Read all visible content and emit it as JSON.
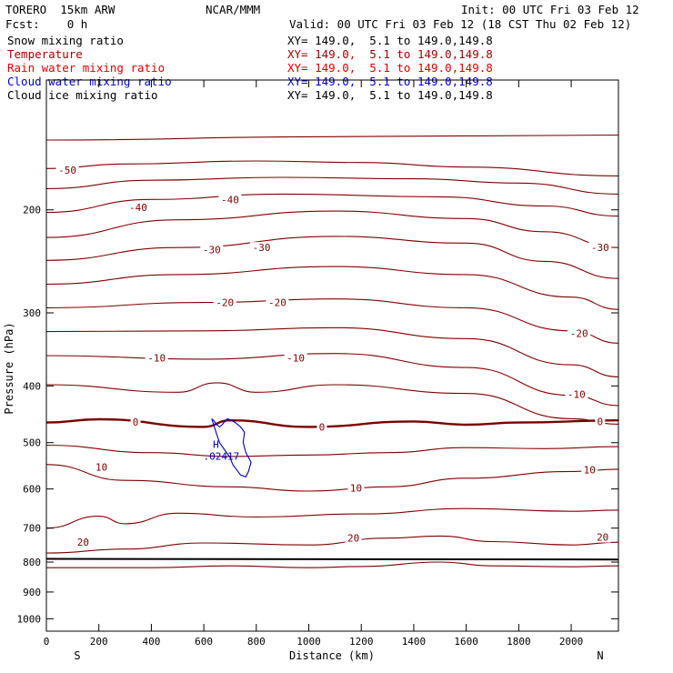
{
  "header": {
    "model": "TORERO  15km ARW",
    "center": "NCAR/MMM",
    "init": "Init: 00 UTC Fri 03 Feb 12",
    "fcst": "Fcst:    0 h",
    "valid": "Valid: 00 UTC Fri 03 Feb 12 (18 CST Thu 02 Feb 12)"
  },
  "fields": [
    {
      "name": "Snow mixing ratio",
      "xy": "XY= 149.0,  5.1 to 149.0,149.8",
      "color": "#000000"
    },
    {
      "name": "Temperature",
      "xy": "XY= 149.0,  5.1 to 149.0,149.8",
      "color": "#aa0000"
    },
    {
      "name": "Rain water mixing ratio",
      "xy": "XY= 149.0,  5.1 to 149.0,149.8",
      "color": "#dd0000"
    },
    {
      "name": "Cloud water mixing ratio",
      "xy": "XY= 149.0,  5.1 to 149.0,149.8",
      "color": "#0000cc"
    },
    {
      "name": "Cloud ice mixing ratio",
      "xy": "XY= 149.0,  5.1 to 149.0,149.8",
      "color": "#000000"
    }
  ],
  "chart_data": {
    "type": "contour",
    "xlabel": "Distance (km)",
    "ylabel": "Pressure (hPa)",
    "xlim": [
      0,
      2180
    ],
    "ylim": [
      1050,
      120
    ],
    "yscale": "log",
    "xticks": [
      0,
      200,
      400,
      600,
      800,
      1000,
      1200,
      1400,
      1600,
      1800,
      2000
    ],
    "yticks": [
      200,
      300,
      400,
      500,
      600,
      700,
      800,
      900,
      1000
    ],
    "x_end_labels": {
      "left": "S",
      "right": "N"
    },
    "temperature_contours": [
      {
        "level": -55,
        "x": [
          0,
          1090,
          2180
        ],
        "p": [
          152,
          150,
          149
        ]
      },
      {
        "level": -50,
        "x": [
          0,
          300,
          800,
          1200,
          1600,
          2180
        ],
        "p": [
          170,
          167,
          165,
          166,
          169,
          175
        ]
      },
      {
        "level": -45,
        "x": [
          0,
          400,
          900,
          1400,
          1800,
          2180
        ],
        "p": [
          184,
          178,
          176,
          177,
          180,
          188
        ]
      },
      {
        "level": -40,
        "x": [
          0,
          400,
          900,
          1500,
          1900,
          2180
        ],
        "p": [
          202,
          192,
          188,
          190,
          197,
          205
        ]
      },
      {
        "level": -35,
        "x": [
          0,
          500,
          1100,
          1600,
          1900,
          2180
        ],
        "p": [
          223,
          208,
          201,
          207,
          218,
          232
        ]
      },
      {
        "level": -30,
        "x": [
          0,
          500,
          1100,
          1600,
          1900,
          2180
        ],
        "p": [
          244,
          232,
          222,
          228,
          245,
          262
        ]
      },
      {
        "level": -25,
        "x": [
          0,
          500,
          1100,
          1600,
          2000,
          2180
        ],
        "p": [
          268,
          258,
          250,
          258,
          282,
          296
        ]
      },
      {
        "level": -20,
        "x": [
          0,
          600,
          1100,
          1600,
          2000,
          2180
        ],
        "p": [
          294,
          288,
          284,
          294,
          322,
          338
        ]
      },
      {
        "level": -15,
        "x": [
          0,
          600,
          1100,
          1600,
          2000,
          2180
        ],
        "p": [
          323,
          322,
          318,
          332,
          368,
          386
        ]
      },
      {
        "level": -10,
        "x": [
          0,
          600,
          1100,
          1600,
          2000,
          2180
        ],
        "p": [
          355,
          360,
          352,
          372,
          415,
          432
        ]
      },
      {
        "level": -5,
        "x": [
          0,
          500,
          650,
          800,
          1100,
          1600,
          2000,
          2180
        ],
        "p": [
          398,
          410,
          395,
          410,
          398,
          412,
          455,
          465
        ]
      },
      {
        "level": 0,
        "x": [
          0,
          200,
          600,
          700,
          1000,
          1400,
          1600,
          1800,
          2180
        ],
        "p": [
          462,
          456,
          470,
          458,
          470,
          460,
          466,
          462,
          458
        ]
      },
      {
        "level": 5,
        "x": [
          0,
          400,
          700,
          1000,
          1300,
          1600,
          1900,
          2180
        ],
        "p": [
          505,
          520,
          528,
          525,
          520,
          510,
          512,
          508
        ]
      },
      {
        "level": 10,
        "x": [
          0,
          300,
          700,
          1000,
          1300,
          1600,
          2000,
          2180
        ],
        "p": [
          545,
          580,
          595,
          605,
          595,
          575,
          560,
          555
        ]
      },
      {
        "level": 15,
        "x": [
          0,
          200,
          300,
          500,
          800,
          1200,
          1600,
          2000,
          2180
        ],
        "p": [
          700,
          668,
          688,
          660,
          670,
          662,
          648,
          655,
          652
        ]
      },
      {
        "level": 20,
        "x": [
          0,
          300,
          600,
          1000,
          1300,
          1500,
          1700,
          2000,
          2180
        ],
        "p": [
          772,
          760,
          742,
          748,
          728,
          722,
          738,
          748,
          740
        ]
      },
      {
        "level": 25,
        "x": [
          0,
          400,
          700,
          1000,
          1200,
          1500,
          1700,
          2000,
          2180
        ],
        "p": [
          818,
          818,
          812,
          818,
          814,
          800,
          812,
          815,
          812
        ]
      }
    ],
    "temperature_labels": [
      {
        "text": "-50",
        "x": 80,
        "p": 171
      },
      {
        "text": "-40",
        "x": 350,
        "p": 198
      },
      {
        "text": "-40",
        "x": 700,
        "p": 192
      },
      {
        "text": "-30",
        "x": 630,
        "p": 234
      },
      {
        "text": "-30",
        "x": 820,
        "p": 232
      },
      {
        "text": "-30",
        "x": 2110,
        "p": 232
      },
      {
        "text": "-20",
        "x": 680,
        "p": 288
      },
      {
        "text": "-20",
        "x": 880,
        "p": 288
      },
      {
        "text": "-20",
        "x": 2030,
        "p": 325
      },
      {
        "text": "-10",
        "x": 420,
        "p": 358
      },
      {
        "text": "-10",
        "x": 950,
        "p": 358
      },
      {
        "text": "-10",
        "x": 2020,
        "p": 413
      },
      {
        "text": "0",
        "x": 340,
        "p": 461
      },
      {
        "text": "0",
        "x": 1050,
        "p": 470
      },
      {
        "text": "0",
        "x": 2110,
        "p": 460
      },
      {
        "text": "10",
        "x": 210,
        "p": 550
      },
      {
        "text": "10",
        "x": 1180,
        "p": 598
      },
      {
        "text": "10",
        "x": 2070,
        "p": 556
      },
      {
        "text": "20",
        "x": 140,
        "p": 740
      },
      {
        "text": "20",
        "x": 1170,
        "p": 728
      },
      {
        "text": "20",
        "x": 2120,
        "p": 725
      }
    ],
    "cloud_water": {
      "x": [
        630,
        640,
        650,
        660,
        680,
        700,
        710,
        730,
        740,
        760,
        770,
        780,
        760,
        750,
        755,
        740,
        720,
        700,
        690,
        680,
        670,
        660,
        650,
        640,
        630
      ],
      "p": [
        455,
        470,
        485,
        500,
        515,
        530,
        545,
        560,
        568,
        572,
        560,
        540,
        520,
        500,
        480,
        470,
        462,
        457,
        455,
        460,
        466,
        470,
        466,
        460,
        455
      ],
      "max_label": "H",
      "max_value": ".02417",
      "max_x": 660,
      "max_p": 518
    },
    "surface_p": [
      790,
      792
    ]
  }
}
